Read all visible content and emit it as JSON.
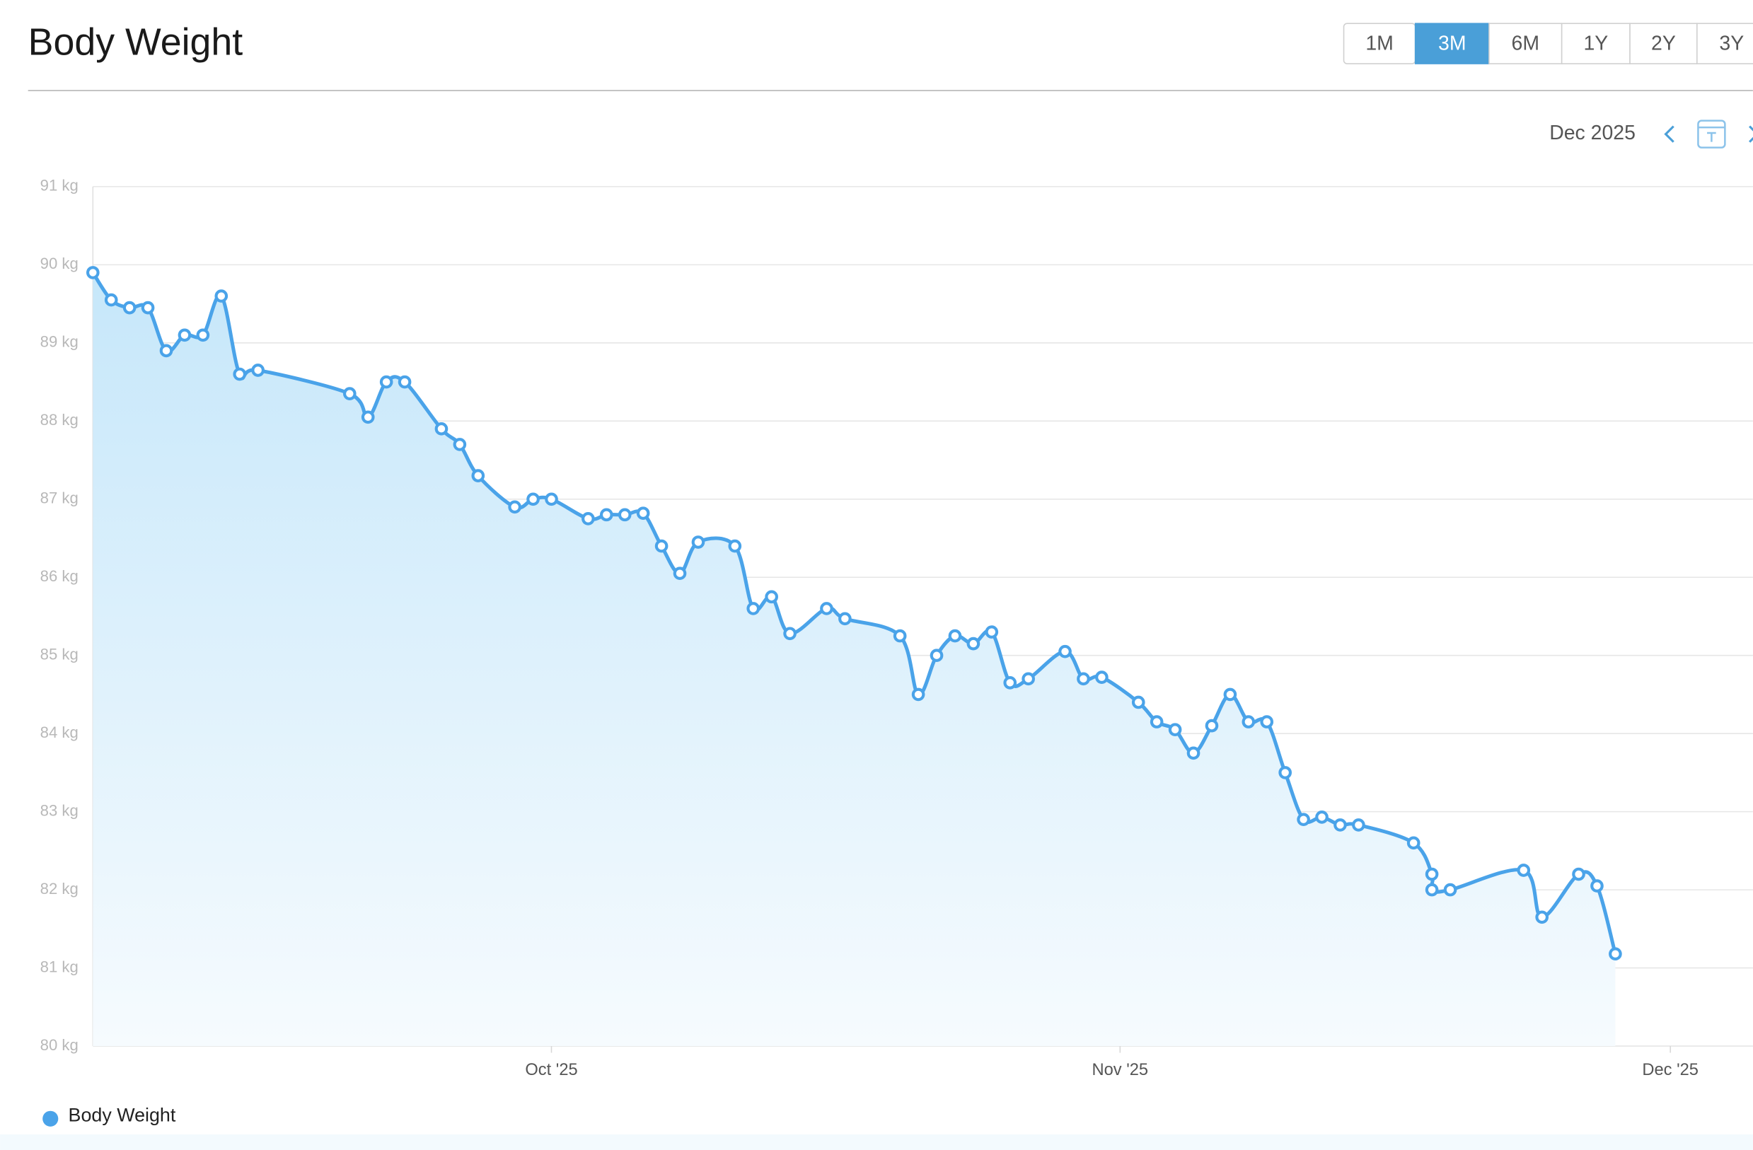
{
  "controls": {
    "ranges": [
      "1M",
      "3M",
      "6M",
      "1Y",
      "2Y",
      "3Y"
    ],
    "active_index": 1,
    "period": "Dec 2025"
  },
  "chart_data": {
    "type": "line",
    "title": "Body Weight",
    "x": [
      0,
      1,
      2,
      3,
      4,
      5,
      6,
      7,
      8,
      9,
      14,
      15,
      16,
      17,
      19,
      20,
      21,
      23,
      24,
      25,
      27,
      28,
      29,
      30,
      31,
      32,
      33,
      35,
      36,
      37,
      38,
      40,
      41,
      44,
      45,
      46,
      47,
      48,
      49,
      50,
      51,
      53,
      54,
      55,
      57,
      58,
      59,
      60,
      61,
      62,
      63,
      64,
      65,
      66,
      67,
      68,
      69,
      72,
      73,
      73,
      74,
      78,
      79,
      81,
      82,
      83
    ],
    "series": [
      {
        "name": "Body Weight",
        "color": "#4aa3e9",
        "values": [
          89.9,
          89.55,
          89.45,
          89.45,
          88.9,
          89.1,
          89.1,
          89.6,
          88.6,
          88.65,
          88.35,
          88.05,
          88.5,
          88.5,
          87.9,
          87.7,
          87.3,
          86.9,
          87.0,
          87.0,
          86.75,
          86.8,
          86.8,
          86.82,
          86.4,
          86.05,
          86.45,
          86.4,
          85.6,
          85.75,
          85.28,
          85.6,
          85.47,
          85.25,
          84.5,
          85.0,
          85.25,
          85.15,
          85.3,
          84.65,
          84.7,
          85.05,
          84.7,
          84.72,
          84.4,
          84.15,
          84.05,
          83.75,
          84.1,
          84.5,
          84.15,
          84.15,
          83.5,
          82.9,
          82.93,
          82.83,
          82.83,
          82.6,
          82.2,
          82.0,
          82.0,
          82.25,
          81.65,
          82.2,
          82.05,
          81.18
        ]
      }
    ],
    "xlim": [
      0,
      90.5
    ],
    "xticks": [
      {
        "value": 25,
        "label": "Oct '25"
      },
      {
        "value": 56,
        "label": "Nov '25"
      },
      {
        "value": 86,
        "label": "Dec '25"
      }
    ],
    "ylim": [
      80,
      91
    ],
    "yticks": [
      {
        "value": 80,
        "label": "80 kg"
      },
      {
        "value": 81,
        "label": "81 kg"
      },
      {
        "value": 82,
        "label": "82 kg"
      },
      {
        "value": 83,
        "label": "83 kg"
      },
      {
        "value": 84,
        "label": "84 kg"
      },
      {
        "value": 85,
        "label": "85 kg"
      },
      {
        "value": 86,
        "label": "86 kg"
      },
      {
        "value": 87,
        "label": "87 kg"
      },
      {
        "value": 88,
        "label": "88 kg"
      },
      {
        "value": 89,
        "label": "89 kg"
      },
      {
        "value": 90,
        "label": "90 kg"
      },
      {
        "value": 91,
        "label": "91 kg"
      }
    ],
    "grid": true,
    "area": true
  }
}
